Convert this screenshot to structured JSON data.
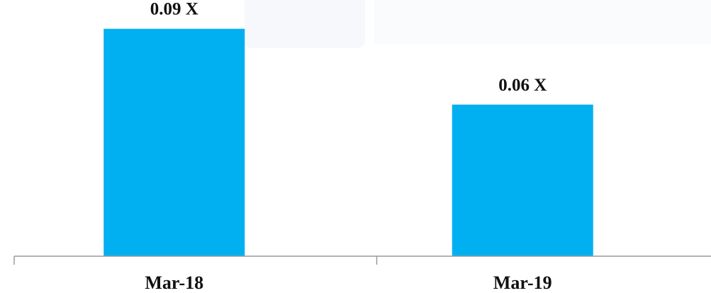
{
  "chart_data": {
    "type": "bar",
    "categories": [
      "Mar-18",
      "Mar-19"
    ],
    "values": [
      0.09,
      0.06
    ],
    "data_labels": [
      "0.09 X",
      "0.06 X"
    ],
    "title": "",
    "xlabel": "",
    "ylabel": "",
    "ylim": [
      0,
      0.1
    ],
    "grid": false,
    "legend": "none",
    "bar_color": "#00b0f0",
    "axis_color": "#9a9a9a",
    "text_color": "#111111"
  }
}
